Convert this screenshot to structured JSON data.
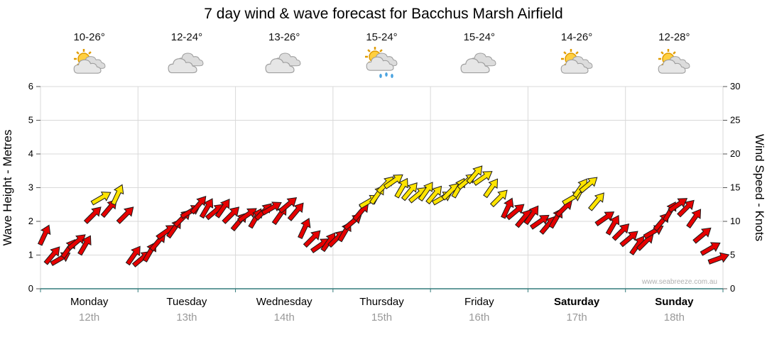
{
  "title": "7 day wind & wave forecast for Bacchus Marsh Airfield",
  "watermark": "www.seabreeze.com.au",
  "axes": {
    "left_label": "Wave Height - Metres",
    "left_ticks": [
      "0",
      "1",
      "2",
      "3",
      "4",
      "5",
      "6"
    ],
    "right_label": "Wind Speed - Knots",
    "right_ticks": [
      "0",
      "5",
      "10",
      "15",
      "20",
      "25",
      "30"
    ]
  },
  "days": [
    {
      "name": "Monday",
      "date": "12th",
      "temp": "10-26°",
      "icon": "partly-cloudy",
      "bold": false
    },
    {
      "name": "Tuesday",
      "date": "13th",
      "temp": "12-24°",
      "icon": "cloudy",
      "bold": false
    },
    {
      "name": "Wednesday",
      "date": "14th",
      "temp": "13-26°",
      "icon": "cloudy",
      "bold": false
    },
    {
      "name": "Thursday",
      "date": "15th",
      "temp": "15-24°",
      "icon": "showers",
      "bold": false
    },
    {
      "name": "Friday",
      "date": "16th",
      "temp": "15-24°",
      "icon": "cloudy",
      "bold": false
    },
    {
      "name": "Saturday",
      "date": "17th",
      "temp": "14-26°",
      "icon": "partly-cloudy",
      "bold": true
    },
    {
      "name": "Sunday",
      "date": "18th",
      "temp": "12-28°",
      "icon": "partly-cloudy",
      "bold": true
    }
  ],
  "chart_data": {
    "type": "scatter",
    "marker": "wind-arrow",
    "title": "7 day wind & wave forecast for Bacchus Marsh Airfield",
    "xlabel": "",
    "ylabel_left": "Wave Height - Metres",
    "ylabel_right": "Wind Speed - Knots",
    "left_axis_range": [
      0,
      6
    ],
    "right_axis_range": [
      0,
      30
    ],
    "grid": true,
    "points_per_day": 12,
    "yellow_threshold_knots": 13,
    "wind_knots": [
      8,
      5,
      4.5,
      6,
      7,
      6.5,
      11,
      13.5,
      12,
      14,
      11,
      5,
      4.5,
      5.5,
      7,
      8.5,
      9,
      10.5,
      11.5,
      12.5,
      12,
      11.5,
      12,
      11,
      10,
      11,
      10.5,
      11.5,
      12,
      11,
      12.5,
      11.5,
      9,
      7.5,
      6.5,
      7,
      7.5,
      8.5,
      10,
      11.5,
      13,
      14,
      15.5,
      16,
      15,
      14.5,
      14,
      14.5,
      14,
      13.5,
      14.5,
      15,
      16,
      17,
      16.5,
      15,
      13.5,
      12,
      11.5,
      10.5,
      11,
      10,
      9.5,
      10.5,
      12,
      13.5,
      15,
      15.5,
      13,
      10.5,
      9.5,
      8.5,
      7.5,
      6.5,
      7,
      8.5,
      10,
      11.5,
      12.5,
      12,
      10.5,
      8,
      6,
      4.5
    ],
    "directions_deg": [
      25,
      40,
      60,
      35,
      50,
      30,
      45,
      60,
      40,
      25,
      45,
      35,
      50,
      30,
      40,
      55,
      35,
      45,
      60,
      40,
      30,
      50,
      35,
      45,
      40,
      55,
      30,
      45,
      60,
      35,
      50,
      40,
      25,
      45,
      55,
      35,
      45,
      30,
      50,
      40,
      60,
      35,
      45,
      55,
      30,
      40,
      50,
      35,
      40,
      60,
      45,
      30,
      50,
      40,
      55,
      35,
      45,
      25,
      50,
      40,
      35,
      55,
      40,
      30,
      45,
      60,
      35,
      50,
      40,
      55,
      30,
      45,
      50,
      35,
      45,
      60,
      40,
      30,
      55,
      45,
      35,
      50,
      60,
      70
    ]
  },
  "colors": {
    "arrow_low": "#e60000",
    "arrow_high": "#ffe400",
    "arrow_outline": "#1a1a1a",
    "grid": "#d9d9d9",
    "axis": "#337b7b",
    "tick": "#555555",
    "date_text": "#999999",
    "watermark": "#b0b0b0",
    "sun_fill": "#ffcf40",
    "sun_stroke": "#e09c00",
    "cloud_fill": "#dcdcdc",
    "cloud_stroke": "#9e9e9e",
    "rain": "#4aa3df"
  }
}
